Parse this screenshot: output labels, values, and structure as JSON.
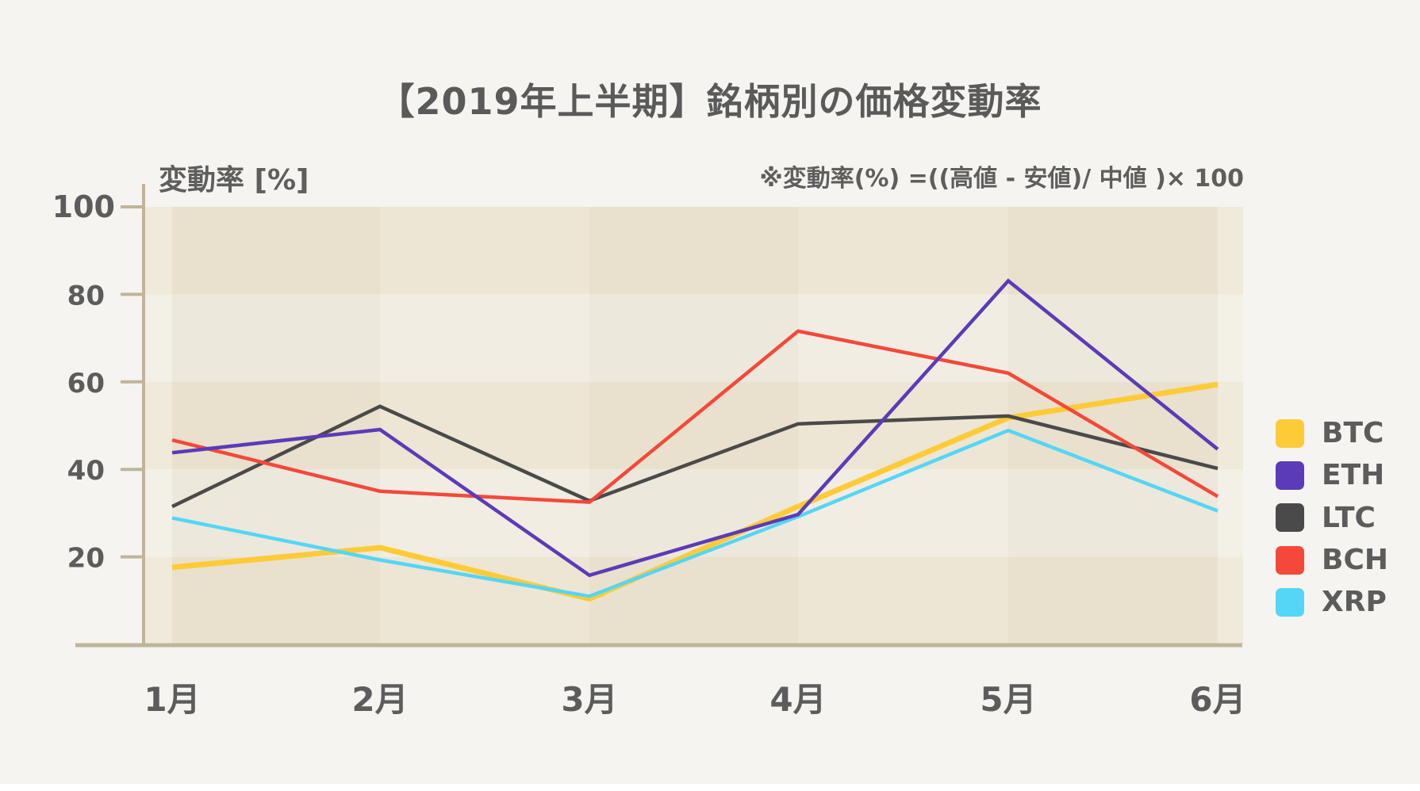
{
  "title": "【2019年上半期】銘柄別の価格変動率",
  "y_axis_label": "変動率 [%]",
  "formula_note": "※変動率(%) =((高値 - 安値)/ 中値 )× 100",
  "colors": {
    "background": "#f5f4f0",
    "band_dark": "#ede6d4",
    "band_light": "#f1ede3",
    "axis": "#bfb59a",
    "text": "#5c5c5c"
  },
  "chart_data": {
    "type": "line",
    "title": "【2019年上半期】銘柄別の価格変動率",
    "xlabel": "",
    "ylabel": "変動率 [%]",
    "annotation": "※変動率(%) =((高値 - 安値)/ 中値 )× 100",
    "categories": [
      "1月",
      "2月",
      "3月",
      "4月",
      "5月",
      "6月"
    ],
    "yticks": [
      20,
      40,
      60,
      80,
      100
    ],
    "ylim": [
      0,
      100
    ],
    "grid": "alternating horizontal bands",
    "legend_position": "right",
    "series": [
      {
        "name": "BTC",
        "color": "#fecb38",
        "values": [
          17.6,
          22.1,
          10.4,
          31.5,
          51.8,
          59.4
        ]
      },
      {
        "name": "ETH",
        "color": "#5b3bb8",
        "values": [
          43.8,
          49.1,
          15.8,
          29.7,
          83.1,
          44.6
        ]
      },
      {
        "name": "LTC",
        "color": "#4a4a4a",
        "values": [
          31.5,
          54.4,
          32.8,
          50.4,
          52.2,
          40.2
        ]
      },
      {
        "name": "BCH",
        "color": "#f5483a",
        "values": [
          46.7,
          35.0,
          32.5,
          71.6,
          62.0,
          33.8
        ]
      },
      {
        "name": "XRP",
        "color": "#54d6f6",
        "values": [
          28.9,
          19.3,
          11.0,
          29.2,
          48.9,
          30.5
        ]
      }
    ]
  },
  "legend": {
    "items": [
      {
        "label": "BTC",
        "color": "#fecb38"
      },
      {
        "label": "ETH",
        "color": "#5b3bb8"
      },
      {
        "label": "LTC",
        "color": "#4a4a4a"
      },
      {
        "label": "BCH",
        "color": "#f5483a"
      },
      {
        "label": "XRP",
        "color": "#54d6f6"
      }
    ]
  }
}
